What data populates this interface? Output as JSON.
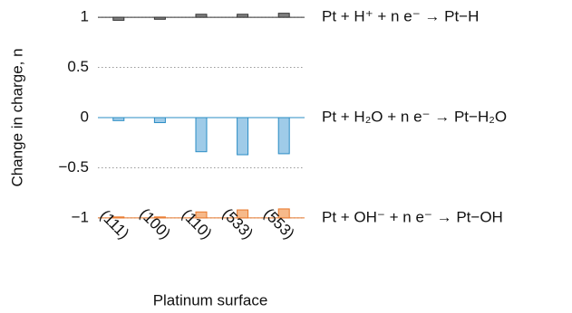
{
  "chart_data": {
    "type": "bar",
    "ylabel": "Change in charge, n",
    "xlabel": "Platinum surface",
    "categories": [
      "(111)",
      "(100)",
      "(110)",
      "(533)",
      "(553)"
    ],
    "series": [
      {
        "name": "Pt + H⁺ + n e⁻ → Pt−H",
        "color": "#808080",
        "edge": "#333333",
        "baseline": 1,
        "values": [
          -0.03,
          -0.02,
          0.03,
          0.03,
          0.04
        ]
      },
      {
        "name": "Pt + H₂O + n e⁻ → Pt−H₂O",
        "color": "#9fcbe8",
        "edge": "#2a8cc4",
        "baseline": 0,
        "values": [
          -0.03,
          -0.05,
          -0.34,
          -0.37,
          -0.36
        ]
      },
      {
        "name": "Pt + OH⁻ + n e⁻ → Pt−OH",
        "color": "#f6b98a",
        "edge": "#e8772a",
        "baseline": -1,
        "values": [
          0.01,
          0.01,
          0.06,
          0.08,
          0.09
        ]
      }
    ],
    "ylim": [
      -1.1,
      1.1
    ],
    "yticks": [
      {
        "value": -1,
        "label": "−1"
      },
      {
        "value": -0.5,
        "label": "−0.5"
      },
      0,
      0.5,
      1
    ],
    "grid": true
  }
}
